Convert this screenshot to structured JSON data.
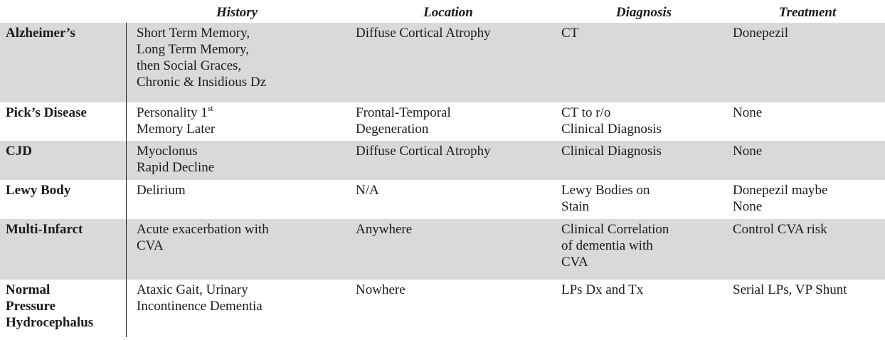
{
  "headers": {
    "history": "History",
    "location": "Location",
    "diagnosis": "Diagnosis",
    "treatment": "Treatment"
  },
  "rows": [
    {
      "name": "Alzheimer’s",
      "history": "Short Term Memory,\nLong Term Memory,\nthen Social Graces,\nChronic & Insidious Dz",
      "location": "Diffuse Cortical Atrophy",
      "diagnosis": "CT",
      "treatment": "Donepezil"
    },
    {
      "name": "Pick’s Disease",
      "history_prefix": "Personality 1",
      "history_sup": "st",
      "history_rest": "Memory Later",
      "location": "Frontal-Temporal\nDegeneration",
      "diagnosis": "CT to r/o\nClinical Diagnosis",
      "treatment": "None"
    },
    {
      "name": "CJD",
      "history": "Myoclonus\nRapid Decline",
      "location": "Diffuse Cortical Atrophy",
      "diagnosis": "Clinical Diagnosis",
      "treatment": "None"
    },
    {
      "name": "Lewy Body",
      "history": "Delirium",
      "location": "N/A",
      "diagnosis": "Lewy Bodies on\nStain",
      "treatment": "Donepezil maybe\nNone"
    },
    {
      "name": "Multi-Infarct",
      "history": "Acute exacerbation with\nCVA",
      "location": "Anywhere",
      "diagnosis": "Clinical Correlation\nof dementia with\nCVA",
      "treatment": "Control CVA risk"
    },
    {
      "name": "Normal\nPressure\nHydrocephalus",
      "history": "Ataxic Gait, Urinary\nIncontinence Dementia",
      "location": "Nowhere",
      "diagnosis": "LPs Dx and Tx",
      "treatment": "Serial LPs, VP Shunt"
    }
  ]
}
